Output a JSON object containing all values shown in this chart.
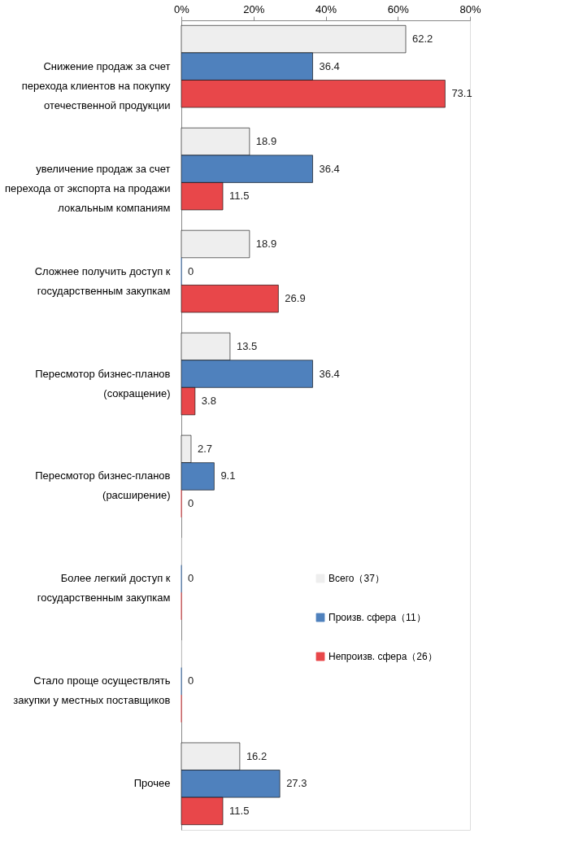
{
  "chart_data": {
    "type": "bar",
    "orientation": "horizontal",
    "categories": [
      "Снижение продаж за счет перехода клиентов на покупку отечественной продукции",
      "увеличение продаж за счет перехода от экспорта на продажи локальным компаниям",
      "Сложнее получить доступ к государственным закупкам",
      "Пересмотор бизнес-планов (сокращение)",
      "Пересмотор бизнес-планов (расширение)",
      "Более легкий доступ к государственным закупкам",
      "Стало проще осуществлять закупки у местных поставщиков",
      "Прочее"
    ],
    "series": [
      {
        "name": "Всего（37）",
        "color": "#eeeeee",
        "values": [
          62.2,
          18.9,
          18.9,
          13.5,
          2.7,
          0,
          0,
          16.2
        ],
        "value_labels": [
          "62.2",
          "18.9",
          "18.9",
          "13.5",
          "2.7",
          null,
          null,
          "16.2"
        ]
      },
      {
        "name": "Произв. сфера（11）",
        "color": "#4f81bd",
        "values": [
          36.4,
          36.4,
          0,
          36.4,
          9.1,
          0,
          0,
          27.3
        ],
        "value_labels": [
          "36.4",
          "36.4",
          "0",
          "36.4",
          "9.1",
          "0",
          "0",
          "27.3"
        ]
      },
      {
        "name": "Непроизв. сфера（26）",
        "color": "#e8474a",
        "values": [
          73.1,
          11.5,
          26.9,
          3.8,
          0,
          0,
          0,
          11.5
        ],
        "value_labels": [
          "73.1",
          "11.5",
          "26.9",
          "3.8",
          "0",
          null,
          null,
          "11.5"
        ]
      }
    ],
    "xlim": [
      0,
      80
    ],
    "xticks": [
      {
        "value": 0,
        "label": "0%"
      },
      {
        "value": 20,
        "label": "20%"
      },
      {
        "value": 40,
        "label": "40%"
      },
      {
        "value": 60,
        "label": "60%"
      },
      {
        "value": 80,
        "label": "80%"
      }
    ],
    "grid": false,
    "legend": "right"
  }
}
